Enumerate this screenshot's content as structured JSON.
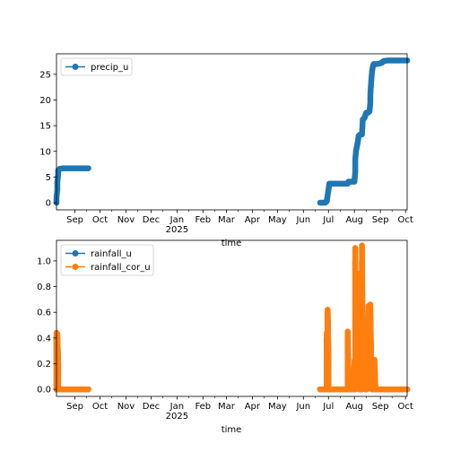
{
  "colors": {
    "blue": "#1f77b4",
    "orange": "#ff7f0e",
    "frame": "#000000",
    "legend_border": "#cccccc"
  },
  "chart_data": [
    {
      "type": "line",
      "id": "precip",
      "xlabel": "time",
      "xlim": [
        "2024-08-10",
        "2025-10-03"
      ],
      "ylim": [
        -1.4,
        29
      ],
      "x_ticks": [
        {
          "date": "2024-09-01",
          "label": "Sep"
        },
        {
          "date": "2024-10-01",
          "label": "Oct"
        },
        {
          "date": "2024-11-01",
          "label": "Nov"
        },
        {
          "date": "2024-12-01",
          "label": "Dec"
        },
        {
          "date": "2025-01-01",
          "label": "Jan",
          "label2": "2025"
        },
        {
          "date": "2025-02-01",
          "label": "Feb"
        },
        {
          "date": "2025-03-01",
          "label": "Mar"
        },
        {
          "date": "2025-04-01",
          "label": "Apr"
        },
        {
          "date": "2025-05-01",
          "label": "May"
        },
        {
          "date": "2025-06-01",
          "label": "Jun"
        },
        {
          "date": "2025-07-01",
          "label": "Jul"
        },
        {
          "date": "2025-08-01",
          "label": "Aug"
        },
        {
          "date": "2025-09-01",
          "label": "Sep"
        },
        {
          "date": "2025-10-01",
          "label": "Oct"
        }
      ],
      "y_ticks": [
        0,
        5,
        10,
        15,
        20,
        25
      ],
      "legend_position": "upper-left",
      "series": [
        {
          "name": "precip_u",
          "color": "#1f77b4",
          "segments": [
            [
              [
                "2024-08-10",
                0.0
              ],
              [
                "2024-08-10",
                1.0
              ],
              [
                "2024-08-11",
                2.5
              ],
              [
                "2024-08-11",
                4.0
              ],
              [
                "2024-08-12",
                5.5
              ],
              [
                "2024-08-12",
                6.3
              ],
              [
                "2024-08-14",
                6.6
              ],
              [
                "2024-08-18",
                6.7
              ],
              [
                "2024-08-26",
                6.7
              ],
              [
                "2024-09-05",
                6.7
              ],
              [
                "2024-09-12",
                6.7
              ],
              [
                "2024-09-17",
                6.7
              ]
            ],
            [
              [
                "2025-06-21",
                0.0
              ],
              [
                "2025-06-24",
                0.0
              ],
              [
                "2025-06-27",
                0.0
              ],
              [
                "2025-06-29",
                0.3
              ],
              [
                "2025-06-30",
                1.5
              ],
              [
                "2025-07-01",
                2.5
              ],
              [
                "2025-07-02",
                3.7
              ],
              [
                "2025-07-05",
                3.7
              ],
              [
                "2025-07-10",
                3.7
              ],
              [
                "2025-07-15",
                3.7
              ],
              [
                "2025-07-20",
                3.7
              ],
              [
                "2025-07-24",
                3.7
              ],
              [
                "2025-07-25",
                4.1
              ],
              [
                "2025-07-28",
                4.1
              ],
              [
                "2025-08-01",
                4.1
              ],
              [
                "2025-08-02",
                6.0
              ],
              [
                "2025-08-02",
                8.5
              ],
              [
                "2025-08-03",
                10.2
              ],
              [
                "2025-08-04",
                11.0
              ],
              [
                "2025-08-05",
                11.8
              ],
              [
                "2025-08-06",
                13.0
              ],
              [
                "2025-08-08",
                13.3
              ],
              [
                "2025-08-10",
                13.3
              ],
              [
                "2025-08-11",
                16.2
              ],
              [
                "2025-08-13",
                16.5
              ],
              [
                "2025-08-15",
                17.5
              ],
              [
                "2025-08-17",
                17.5
              ],
              [
                "2025-08-19",
                17.8
              ],
              [
                "2025-08-20",
                19.5
              ],
              [
                "2025-08-20",
                21.0
              ],
              [
                "2025-08-21",
                23.5
              ],
              [
                "2025-08-22",
                25.5
              ],
              [
                "2025-08-23",
                26.5
              ],
              [
                "2025-08-24",
                27.0
              ],
              [
                "2025-08-27",
                27.0
              ],
              [
                "2025-08-31",
                27.1
              ],
              [
                "2025-09-03",
                27.3
              ],
              [
                "2025-09-05",
                27.6
              ],
              [
                "2025-09-10",
                27.7
              ],
              [
                "2025-09-15",
                27.7
              ],
              [
                "2025-09-20",
                27.7
              ],
              [
                "2025-09-25",
                27.7
              ],
              [
                "2025-10-03",
                27.7
              ]
            ]
          ]
        }
      ]
    },
    {
      "type": "line",
      "id": "rainfall",
      "xlabel": "time",
      "xlim": [
        "2024-08-10",
        "2025-10-03"
      ],
      "ylim": [
        -0.055,
        1.16
      ],
      "x_ticks": [
        {
          "date": "2024-09-01",
          "label": "Sep"
        },
        {
          "date": "2024-10-01",
          "label": "Oct"
        },
        {
          "date": "2024-11-01",
          "label": "Nov"
        },
        {
          "date": "2024-12-01",
          "label": "Dec"
        },
        {
          "date": "2025-01-01",
          "label": "Jan",
          "label2": "2025"
        },
        {
          "date": "2025-02-01",
          "label": "Feb"
        },
        {
          "date": "2025-03-01",
          "label": "Mar"
        },
        {
          "date": "2025-04-01",
          "label": "Apr"
        },
        {
          "date": "2025-05-01",
          "label": "May"
        },
        {
          "date": "2025-06-01",
          "label": "Jun"
        },
        {
          "date": "2025-07-01",
          "label": "Jul"
        },
        {
          "date": "2025-08-01",
          "label": "Aug"
        },
        {
          "date": "2025-09-01",
          "label": "Sep"
        },
        {
          "date": "2025-10-01",
          "label": "Oct"
        }
      ],
      "y_ticks": [
        0.0,
        0.2,
        0.4,
        0.6,
        0.8,
        1.0
      ],
      "legend_position": "upper-left",
      "series": [
        {
          "name": "rainfall_u",
          "color": "#1f77b4",
          "segments": [
            [
              [
                "2024-08-10",
                0.0
              ],
              [
                "2024-08-10",
                0.4
              ],
              [
                "2024-08-11",
                0.0
              ],
              [
                "2024-08-11",
                0.4
              ],
              [
                "2024-08-12",
                0.2
              ],
              [
                "2024-08-12",
                0.0
              ],
              [
                "2024-08-14",
                0.0
              ],
              [
                "2024-08-20",
                0.0
              ],
              [
                "2024-08-26",
                0.0
              ],
              [
                "2024-09-02",
                0.0
              ],
              [
                "2024-09-09",
                0.0
              ],
              [
                "2024-09-17",
                0.0
              ]
            ],
            [
              [
                "2025-06-21",
                0.0
              ],
              [
                "2025-06-26",
                0.0
              ],
              [
                "2025-06-29",
                0.0
              ],
              [
                "2025-06-29",
                0.4
              ],
              [
                "2025-06-30",
                0.0
              ],
              [
                "2025-06-30",
                0.6
              ],
              [
                "2025-07-01",
                0.2
              ],
              [
                "2025-07-01",
                0.0
              ],
              [
                "2025-07-10",
                0.0
              ],
              [
                "2025-07-20",
                0.0
              ],
              [
                "2025-07-24",
                0.0
              ],
              [
                "2025-07-24",
                0.4
              ],
              [
                "2025-07-25",
                0.0
              ],
              [
                "2025-07-31",
                0.0
              ],
              [
                "2025-08-01",
                0.2
              ],
              [
                "2025-08-02",
                0.0
              ],
              [
                "2025-08-02",
                1.0
              ],
              [
                "2025-08-03",
                0.4
              ],
              [
                "2025-08-03",
                0.8
              ],
              [
                "2025-08-04",
                0.2
              ],
              [
                "2025-08-04",
                0.6
              ],
              [
                "2025-08-05",
                0.8
              ],
              [
                "2025-08-05",
                0.4
              ],
              [
                "2025-08-06",
                0.2
              ],
              [
                "2025-08-07",
                0.0
              ],
              [
                "2025-08-08",
                0.2
              ],
              [
                "2025-08-09",
                0.6
              ],
              [
                "2025-08-10",
                0.0
              ],
              [
                "2025-08-10",
                1.0
              ],
              [
                "2025-08-11",
                0.2
              ],
              [
                "2025-08-12",
                0.4
              ],
              [
                "2025-08-13",
                0.2
              ],
              [
                "2025-08-14",
                0.0
              ],
              [
                "2025-08-15",
                0.2
              ],
              [
                "2025-08-16",
                0.0
              ],
              [
                "2025-08-17",
                0.2
              ],
              [
                "2025-08-18",
                0.6
              ],
              [
                "2025-08-19",
                0.2
              ],
              [
                "2025-08-20",
                0.6
              ],
              [
                "2025-08-21",
                0.2
              ],
              [
                "2025-08-22",
                0.0
              ],
              [
                "2025-08-25",
                0.0
              ],
              [
                "2025-08-25",
                0.2
              ],
              [
                "2025-08-26",
                0.0
              ],
              [
                "2025-09-05",
                0.0
              ],
              [
                "2025-09-15",
                0.0
              ],
              [
                "2025-09-25",
                0.0
              ],
              [
                "2025-10-03",
                0.0
              ]
            ]
          ]
        },
        {
          "name": "rainfall_cor_u",
          "color": "#ff7f0e",
          "segments": [
            [
              [
                "2024-08-10",
                0.0
              ],
              [
                "2024-08-10",
                0.44
              ],
              [
                "2024-08-11",
                0.0
              ],
              [
                "2024-08-11",
                0.43
              ],
              [
                "2024-08-12",
                0.22
              ],
              [
                "2024-08-12",
                0.0
              ],
              [
                "2024-08-14",
                0.0
              ],
              [
                "2024-08-20",
                0.0
              ],
              [
                "2024-08-26",
                0.0
              ],
              [
                "2024-09-02",
                0.0
              ],
              [
                "2024-09-09",
                0.0
              ],
              [
                "2024-09-17",
                0.0
              ]
            ],
            [
              [
                "2025-06-21",
                0.0
              ],
              [
                "2025-06-26",
                0.0
              ],
              [
                "2025-06-29",
                0.0
              ],
              [
                "2025-06-29",
                0.44
              ],
              [
                "2025-06-30",
                0.0
              ],
              [
                "2025-06-30",
                0.62
              ],
              [
                "2025-07-01",
                0.22
              ],
              [
                "2025-07-01",
                0.0
              ],
              [
                "2025-07-10",
                0.0
              ],
              [
                "2025-07-20",
                0.0
              ],
              [
                "2025-07-24",
                0.0
              ],
              [
                "2025-07-24",
                0.45
              ],
              [
                "2025-07-25",
                0.0
              ],
              [
                "2025-07-31",
                0.0
              ],
              [
                "2025-08-01",
                0.22
              ],
              [
                "2025-08-02",
                0.0
              ],
              [
                "2025-08-02",
                1.1
              ],
              [
                "2025-08-03",
                0.44
              ],
              [
                "2025-08-03",
                0.88
              ],
              [
                "2025-08-04",
                0.22
              ],
              [
                "2025-08-04",
                0.66
              ],
              [
                "2025-08-05",
                0.9
              ],
              [
                "2025-08-05",
                0.44
              ],
              [
                "2025-08-06",
                0.22
              ],
              [
                "2025-08-07",
                0.0
              ],
              [
                "2025-08-08",
                0.22
              ],
              [
                "2025-08-09",
                0.66
              ],
              [
                "2025-08-10",
                0.0
              ],
              [
                "2025-08-10",
                1.12
              ],
              [
                "2025-08-11",
                0.22
              ],
              [
                "2025-08-12",
                0.44
              ],
              [
                "2025-08-13",
                0.23
              ],
              [
                "2025-08-14",
                0.0
              ],
              [
                "2025-08-15",
                0.22
              ],
              [
                "2025-08-16",
                0.0
              ],
              [
                "2025-08-17",
                0.22
              ],
              [
                "2025-08-18",
                0.65
              ],
              [
                "2025-08-19",
                0.22
              ],
              [
                "2025-08-20",
                0.66
              ],
              [
                "2025-08-21",
                0.22
              ],
              [
                "2025-08-22",
                0.0
              ],
              [
                "2025-08-25",
                0.0
              ],
              [
                "2025-08-25",
                0.23
              ],
              [
                "2025-08-26",
                0.0
              ],
              [
                "2025-09-05",
                0.0
              ],
              [
                "2025-09-15",
                0.0
              ],
              [
                "2025-09-25",
                0.0
              ],
              [
                "2025-10-03",
                0.0
              ]
            ]
          ]
        }
      ]
    }
  ]
}
